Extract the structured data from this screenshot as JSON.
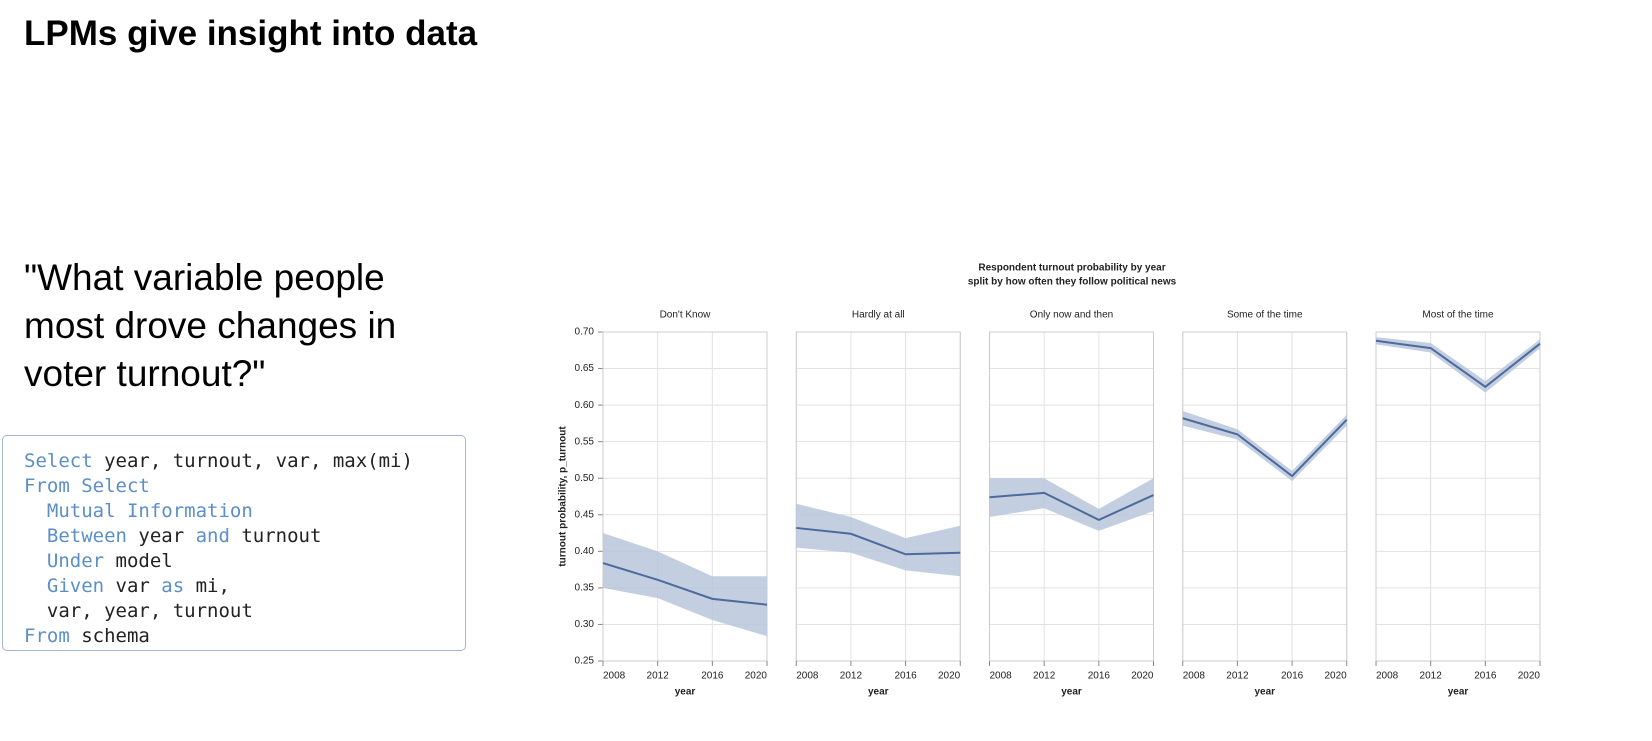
{
  "title": "LPMs give insight into data",
  "question": "\"What variable people most drove changes in voter turnout?\"",
  "code": {
    "lines": [
      {
        "tokens": [
          {
            "text": "Select",
            "kw": true
          },
          {
            "text": " year, turnout, var, max(mi)",
            "kw": false
          }
        ]
      },
      {
        "tokens": [
          {
            "text": "From Select",
            "kw": true
          }
        ]
      },
      {
        "tokens": [
          {
            "text": "  Mutual Information",
            "kw": true
          }
        ]
      },
      {
        "tokens": [
          {
            "text": "  Between",
            "kw": true
          },
          {
            "text": " year ",
            "kw": false
          },
          {
            "text": "and",
            "kw": true
          },
          {
            "text": " turnout",
            "kw": false
          }
        ]
      },
      {
        "tokens": [
          {
            "text": "  Under",
            "kw": true
          },
          {
            "text": " model",
            "kw": false
          }
        ]
      },
      {
        "tokens": [
          {
            "text": "  Given",
            "kw": true
          },
          {
            "text": " var ",
            "kw": false
          },
          {
            "text": "as",
            "kw": true
          },
          {
            "text": " mi,",
            "kw": false
          }
        ]
      },
      {
        "tokens": [
          {
            "text": "  var, year, turnout",
            "kw": false
          }
        ]
      },
      {
        "tokens": [
          {
            "text": "From",
            "kw": true
          },
          {
            "text": " schema",
            "kw": false
          }
        ]
      }
    ]
  },
  "chart_data": {
    "type": "line",
    "title": [
      "Respondent turnout probability by year",
      "split by how often they follow political news"
    ],
    "y_label": "turnout probability, p_turnout",
    "x_label": "year",
    "x": [
      2008,
      2012,
      2016,
      2020
    ],
    "xlim": [
      2008,
      2020
    ],
    "xticks": [
      2008,
      2012,
      2016,
      2020
    ],
    "ylim": [
      0.25,
      0.7
    ],
    "yticks": [
      0.25,
      {
        "value": 0.3,
        "label": "0.30"
      },
      0.35,
      {
        "value": 0.4,
        "label": "0.40"
      },
      0.45,
      {
        "value": 0.5,
        "label": "0.50"
      },
      0.55,
      {
        "value": 0.6,
        "label": "0.60"
      },
      0.65,
      {
        "value": 0.7,
        "label": "0.70"
      }
    ],
    "grid": true,
    "color": "#4c6a9c",
    "band_color": "#b9c6db",
    "facets": [
      {
        "name": "Don't Know",
        "values": [
          0.384,
          0.361,
          0.335,
          0.327
        ],
        "lower": [
          0.35,
          0.336,
          0.306,
          0.284
        ],
        "upper": [
          0.425,
          0.4,
          0.366,
          0.366
        ]
      },
      {
        "name": "Hardly at all",
        "values": [
          0.432,
          0.424,
          0.396,
          0.398
        ],
        "lower": [
          0.405,
          0.398,
          0.374,
          0.366
        ],
        "upper": [
          0.465,
          0.447,
          0.418,
          0.435
        ]
      },
      {
        "name": "Only now and then",
        "values": [
          0.474,
          0.48,
          0.443,
          0.477
        ],
        "lower": [
          0.447,
          0.459,
          0.428,
          0.455
        ],
        "upper": [
          0.5,
          0.5,
          0.458,
          0.5
        ]
      },
      {
        "name": "Some of the time",
        "values": [
          0.582,
          0.56,
          0.503,
          0.58
        ],
        "lower": [
          0.572,
          0.553,
          0.496,
          0.572
        ],
        "upper": [
          0.592,
          0.567,
          0.51,
          0.587
        ]
      },
      {
        "name": "Most of the time",
        "values": [
          0.688,
          0.678,
          0.625,
          0.684
        ],
        "lower": [
          0.683,
          0.672,
          0.617,
          0.678
        ],
        "upper": [
          0.693,
          0.685,
          0.633,
          0.69
        ]
      }
    ]
  }
}
